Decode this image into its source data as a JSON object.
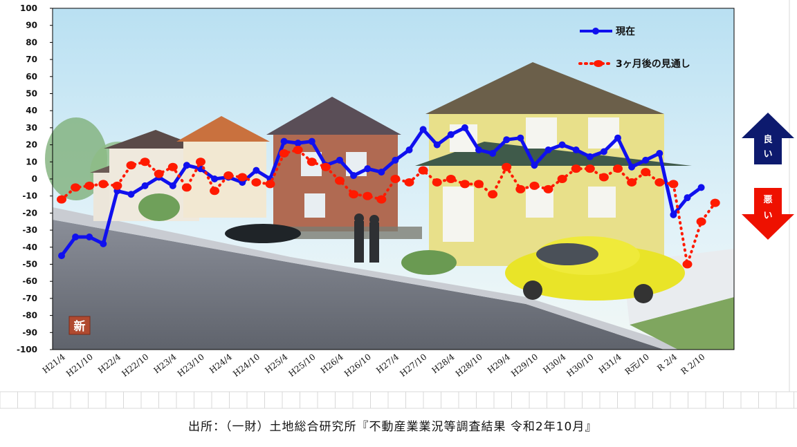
{
  "chart_data": {
    "type": "line",
    "title": "",
    "xlabel": "",
    "ylabel": "",
    "ylim": [
      -100,
      100
    ],
    "yticks": [
      100,
      90,
      80,
      70,
      60,
      50,
      40,
      30,
      20,
      10,
      0,
      -10,
      -20,
      -30,
      -40,
      -50,
      -60,
      -70,
      -80,
      -90,
      -100
    ],
    "categories": [
      "H21/4",
      "H21/10",
      "H22/4",
      "H22/10",
      "H23/4",
      "H23/10",
      "H24/4",
      "H24/10",
      "H25/4",
      "H25/10",
      "H26/4",
      "H26/10",
      "H27/4",
      "H27/10",
      "H28/4",
      "H28/10",
      "H29/4",
      "H29/10",
      "H30/4",
      "H30/10",
      "H31/4",
      "R元/10",
      "R 2/4",
      "R 2/10"
    ],
    "grid": true,
    "legend_position": "top-right",
    "series": [
      {
        "name": "現在",
        "color": "#1010ee",
        "style": "solid-markers",
        "points": [
          [
            0,
            -45
          ],
          [
            0.5,
            -34
          ],
          [
            1,
            -34
          ],
          [
            1.5,
            -38
          ],
          [
            2,
            -7
          ],
          [
            2.5,
            -9
          ],
          [
            3,
            -4
          ],
          [
            3.5,
            1
          ],
          [
            4,
            -4
          ],
          [
            4.5,
            8
          ],
          [
            5,
            6
          ],
          [
            5.5,
            0
          ],
          [
            6,
            1
          ],
          [
            6.5,
            -2
          ],
          [
            7,
            5
          ],
          [
            7.5,
            0
          ],
          [
            8,
            22
          ],
          [
            8.5,
            21
          ],
          [
            9,
            22
          ],
          [
            9.5,
            8
          ],
          [
            10,
            11
          ],
          [
            10.5,
            2
          ],
          [
            11,
            6
          ],
          [
            11.5,
            4
          ],
          [
            12,
            11
          ],
          [
            12.5,
            17
          ],
          [
            13,
            29
          ],
          [
            13.5,
            20
          ],
          [
            14,
            26
          ],
          [
            14.5,
            30
          ],
          [
            15,
            17
          ],
          [
            15.5,
            15
          ],
          [
            16,
            23
          ],
          [
            16.5,
            24
          ],
          [
            17,
            8
          ],
          [
            17.5,
            17
          ],
          [
            18,
            20
          ],
          [
            18.5,
            17
          ],
          [
            19,
            13
          ],
          [
            19.5,
            16
          ],
          [
            20,
            24
          ],
          [
            20.5,
            7
          ],
          [
            21,
            11
          ],
          [
            21.5,
            15
          ],
          [
            22,
            -21
          ],
          [
            22.5,
            -11
          ],
          [
            23,
            -5
          ]
        ]
      },
      {
        "name": "3ヶ月後の見通し",
        "color": "#ff1a00",
        "style": "dotted-markers",
        "points": [
          [
            0,
            -12
          ],
          [
            0.5,
            -5
          ],
          [
            1,
            -4
          ],
          [
            1.5,
            -3
          ],
          [
            2,
            -4
          ],
          [
            2.5,
            8
          ],
          [
            3,
            10
          ],
          [
            3.5,
            3
          ],
          [
            4,
            7
          ],
          [
            4.5,
            -5
          ],
          [
            5,
            10
          ],
          [
            5.5,
            -7
          ],
          [
            6,
            2
          ],
          [
            6.5,
            1
          ],
          [
            7,
            -2
          ],
          [
            7.5,
            -3
          ],
          [
            8,
            15
          ],
          [
            8.5,
            17
          ],
          [
            9,
            10
          ],
          [
            9.5,
            7
          ],
          [
            10,
            -1
          ],
          [
            10.5,
            -9
          ],
          [
            11,
            -10
          ],
          [
            11.5,
            -12
          ],
          [
            12,
            0
          ],
          [
            12.5,
            -2
          ],
          [
            13,
            5
          ],
          [
            13.5,
            -2
          ],
          [
            14,
            0
          ],
          [
            14.5,
            -3
          ],
          [
            15,
            -3
          ],
          [
            15.5,
            -9
          ],
          [
            16,
            7
          ],
          [
            16.5,
            -6
          ],
          [
            17,
            -4
          ],
          [
            17.5,
            -6
          ],
          [
            18,
            0
          ],
          [
            18.5,
            6
          ],
          [
            19,
            6
          ],
          [
            19.5,
            1
          ],
          [
            20,
            6
          ],
          [
            20.5,
            -2
          ],
          [
            21,
            4
          ],
          [
            21.5,
            -2
          ],
          [
            22,
            -3
          ],
          [
            22.5,
            -50
          ],
          [
            23,
            -25
          ],
          [
            23.5,
            -14
          ]
        ]
      }
    ],
    "annotations": [
      {
        "text": "良い",
        "color": "#0d1a6e"
      },
      {
        "text": "悪い",
        "color": "#ee1100"
      },
      {
        "text": "新",
        "color": "#b04a30"
      }
    ]
  },
  "source_text": "出所：（一財）土地総合研究所『不動産業業況等調査結果 令和2年10月』"
}
